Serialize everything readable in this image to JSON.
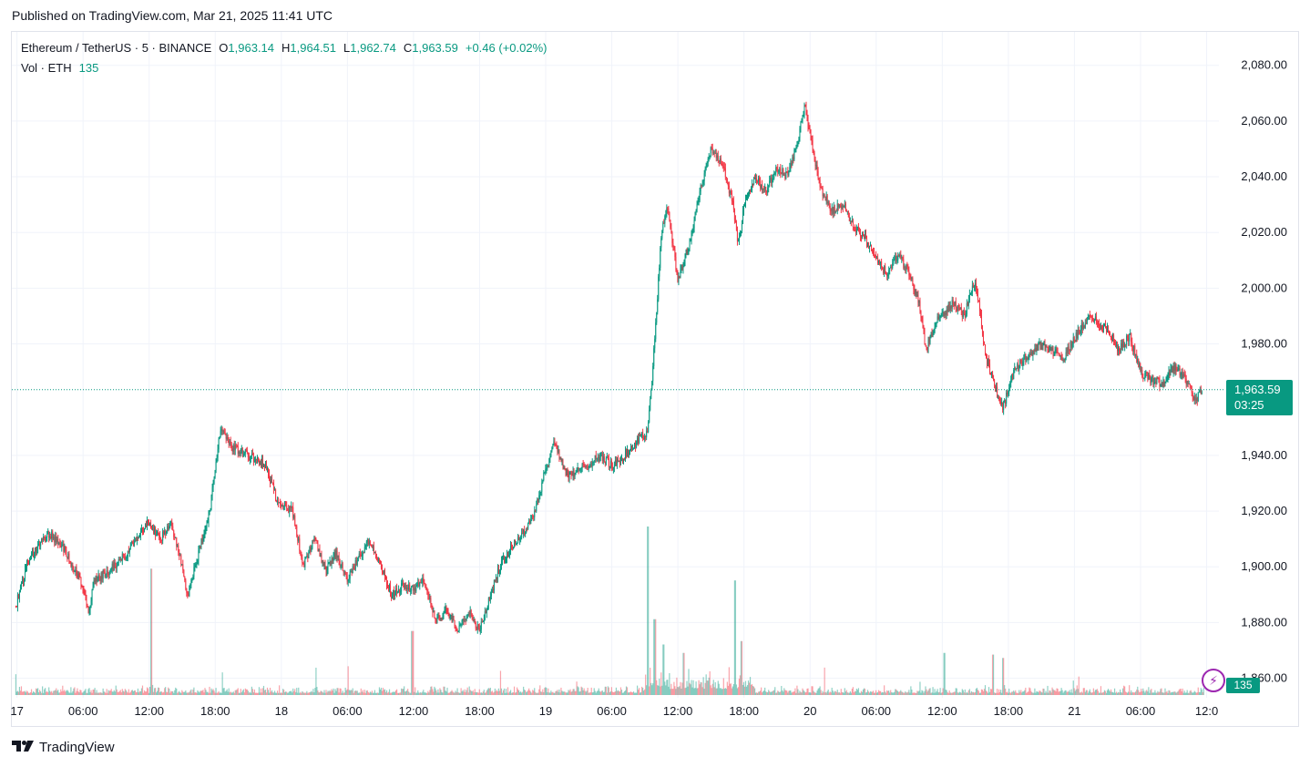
{
  "header": {
    "published": "Published on TradingView.com, Mar 21, 2025 11:41 UTC"
  },
  "legend": {
    "symbol": "Ethereum / TetherUS · 5 · BINANCE",
    "open_label": "O",
    "open": "1,963.14",
    "high_label": "H",
    "high": "1,964.51",
    "low_label": "L",
    "low": "1,962.74",
    "close_label": "C",
    "close": "1,963.59",
    "change": "+0.46 (+0.02%)"
  },
  "volume_legend": {
    "label": "Vol · ETH",
    "value": "135"
  },
  "price_tag": {
    "price": "1,963.59",
    "countdown": "03:25"
  },
  "volume_tag": {
    "value": "135"
  },
  "footer": {
    "brand": "TradingView"
  },
  "colors": {
    "up": "#089981",
    "down": "#f23645",
    "grid": "#f0f3fa",
    "axis_text": "#131722",
    "flash": "#9c27b0"
  },
  "icons": {
    "alert": "lightning-icon",
    "logo": "tradingview-logo-icon"
  },
  "chart_data": {
    "type": "candlestick",
    "pair": "Ethereum / TetherUS",
    "interval": "5",
    "exchange": "BINANCE",
    "ylim": [
      1853,
      2092
    ],
    "y_ticks": [
      "2,080.00",
      "2,060.00",
      "2,040.00",
      "2,020.00",
      "2,000.00",
      "1,980.00",
      "1,940.00",
      "1,920.00",
      "1,900.00",
      "1,880.00",
      "1,860.00"
    ],
    "y_tick_values": [
      2080,
      2060,
      2040,
      2020,
      2000,
      1980,
      1940,
      1920,
      1900,
      1880,
      1860
    ],
    "x_ticks": [
      "17",
      "06:00",
      "12:00",
      "18:00",
      "18",
      "06:00",
      "12:00",
      "18:00",
      "19",
      "06:00",
      "12:00",
      "18:00",
      "20",
      "06:00",
      "12:00",
      "18:00",
      "21",
      "06:00",
      "12:0"
    ],
    "x_tick_hours": [
      0,
      6,
      12,
      18,
      24,
      30,
      36,
      42,
      48,
      54,
      60,
      66,
      72,
      78,
      84,
      90,
      96,
      102,
      108
    ],
    "x_range_hours": [
      -0.3,
      108.7
    ],
    "last_price": 1963.59,
    "grid": true,
    "price_path": [
      {
        "h": -0.1,
        "p": 1886
      },
      {
        "h": 1,
        "p": 1902
      },
      {
        "h": 2,
        "p": 1908
      },
      {
        "h": 3,
        "p": 1912
      },
      {
        "h": 4.5,
        "p": 1905
      },
      {
        "h": 6,
        "p": 1893
      },
      {
        "h": 6.5,
        "p": 1882
      },
      {
        "h": 7,
        "p": 1895
      },
      {
        "h": 8.5,
        "p": 1899
      },
      {
        "h": 10,
        "p": 1905
      },
      {
        "h": 11,
        "p": 1912
      },
      {
        "h": 12,
        "p": 1916
      },
      {
        "h": 13,
        "p": 1910
      },
      {
        "h": 14,
        "p": 1915
      },
      {
        "h": 15,
        "p": 1900
      },
      {
        "h": 15.5,
        "p": 1890
      },
      {
        "h": 16.5,
        "p": 1905
      },
      {
        "h": 17.5,
        "p": 1920
      },
      {
        "h": 18,
        "p": 1935
      },
      {
        "h": 18.5,
        "p": 1950
      },
      {
        "h": 19.5,
        "p": 1943
      },
      {
        "h": 21,
        "p": 1940
      },
      {
        "h": 22.5,
        "p": 1937
      },
      {
        "h": 23.5,
        "p": 1925
      },
      {
        "h": 25,
        "p": 1920
      },
      {
        "h": 26,
        "p": 1900
      },
      {
        "h": 27,
        "p": 1910
      },
      {
        "h": 28,
        "p": 1898
      },
      {
        "h": 29,
        "p": 1905
      },
      {
        "h": 30,
        "p": 1895
      },
      {
        "h": 31,
        "p": 1903
      },
      {
        "h": 32,
        "p": 1910
      },
      {
        "h": 33,
        "p": 1900
      },
      {
        "h": 34,
        "p": 1890
      },
      {
        "h": 35,
        "p": 1893
      },
      {
        "h": 36,
        "p": 1892
      },
      {
        "h": 37,
        "p": 1895
      },
      {
        "h": 38,
        "p": 1880
      },
      {
        "h": 39,
        "p": 1885
      },
      {
        "h": 40,
        "p": 1878
      },
      {
        "h": 41,
        "p": 1884
      },
      {
        "h": 42,
        "p": 1877
      },
      {
        "h": 43,
        "p": 1890
      },
      {
        "h": 44,
        "p": 1902
      },
      {
        "h": 45,
        "p": 1908
      },
      {
        "h": 46,
        "p": 1912
      },
      {
        "h": 47,
        "p": 1920
      },
      {
        "h": 48,
        "p": 1935
      },
      {
        "h": 48.8,
        "p": 1945
      },
      {
        "h": 50,
        "p": 1932
      },
      {
        "h": 51.5,
        "p": 1936
      },
      {
        "h": 53,
        "p": 1940
      },
      {
        "h": 54,
        "p": 1936
      },
      {
        "h": 55,
        "p": 1939
      },
      {
        "h": 56.5,
        "p": 1946
      },
      {
        "h": 57.2,
        "p": 1948
      },
      {
        "h": 57.6,
        "p": 1965
      },
      {
        "h": 58,
        "p": 1988
      },
      {
        "h": 58.5,
        "p": 2020
      },
      {
        "h": 59,
        "p": 2030
      },
      {
        "h": 60,
        "p": 2003
      },
      {
        "h": 61,
        "p": 2015
      },
      {
        "h": 62,
        "p": 2035
      },
      {
        "h": 63,
        "p": 2050
      },
      {
        "h": 64,
        "p": 2045
      },
      {
        "h": 65,
        "p": 2030
      },
      {
        "h": 65.5,
        "p": 2015
      },
      {
        "h": 66,
        "p": 2030
      },
      {
        "h": 67,
        "p": 2040
      },
      {
        "h": 68,
        "p": 2035
      },
      {
        "h": 69,
        "p": 2043
      },
      {
        "h": 70,
        "p": 2040
      },
      {
        "h": 71,
        "p": 2055
      },
      {
        "h": 71.5,
        "p": 2065
      },
      {
        "h": 72,
        "p": 2055
      },
      {
        "h": 73,
        "p": 2035
      },
      {
        "h": 74,
        "p": 2028
      },
      {
        "h": 75,
        "p": 2030
      },
      {
        "h": 76,
        "p": 2022
      },
      {
        "h": 77,
        "p": 2018
      },
      {
        "h": 78,
        "p": 2010
      },
      {
        "h": 79,
        "p": 2005
      },
      {
        "h": 80,
        "p": 2012
      },
      {
        "h": 81,
        "p": 2005
      },
      {
        "h": 82,
        "p": 1993
      },
      {
        "h": 82.5,
        "p": 1978
      },
      {
        "h": 83.5,
        "p": 1988
      },
      {
        "h": 85,
        "p": 1995
      },
      {
        "h": 86,
        "p": 1990
      },
      {
        "h": 87,
        "p": 2003
      },
      {
        "h": 88,
        "p": 1975
      },
      {
        "h": 89,
        "p": 1962
      },
      {
        "h": 89.5,
        "p": 1957
      },
      {
        "h": 90.5,
        "p": 1970
      },
      {
        "h": 91.5,
        "p": 1975
      },
      {
        "h": 93,
        "p": 1980
      },
      {
        "h": 95,
        "p": 1975
      },
      {
        "h": 96.5,
        "p": 1985
      },
      {
        "h": 97.5,
        "p": 1990
      },
      {
        "h": 99,
        "p": 1985
      },
      {
        "h": 100,
        "p": 1978
      },
      {
        "h": 101,
        "p": 1983
      },
      {
        "h": 102,
        "p": 1970
      },
      {
        "h": 103,
        "p": 1967
      },
      {
        "h": 104,
        "p": 1966
      },
      {
        "h": 105,
        "p": 1972
      },
      {
        "h": 106,
        "p": 1968
      },
      {
        "h": 107,
        "p": 1960
      },
      {
        "h": 107.6,
        "p": 1963.5
      }
    ],
    "volume_spikes": [
      {
        "h": 12.2,
        "v": 0.75
      },
      {
        "h": 35.9,
        "v": 0.38
      },
      {
        "h": 57.3,
        "v": 1.0
      },
      {
        "h": 57.9,
        "v": 0.45
      },
      {
        "h": 58.7,
        "v": 0.3
      },
      {
        "h": 60.5,
        "v": 0.25
      },
      {
        "h": 65.2,
        "v": 0.68
      },
      {
        "h": 65.8,
        "v": 0.32
      },
      {
        "h": 84.2,
        "v": 0.25
      },
      {
        "h": 88.6,
        "v": 0.24
      },
      {
        "h": 89.5,
        "v": 0.22
      }
    ]
  }
}
